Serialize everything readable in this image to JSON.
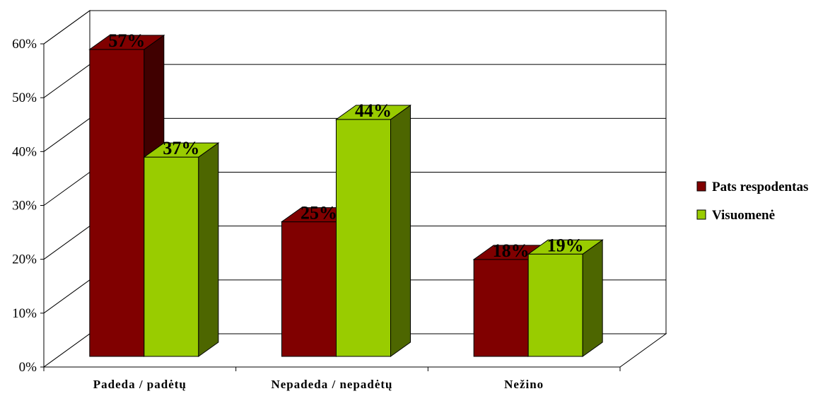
{
  "chart_data": {
    "type": "bar",
    "title": "",
    "xlabel": "",
    "ylabel": "",
    "categories": [
      "Padeda / padėtų",
      "Nepadeda / nepadėtų",
      "Nežino"
    ],
    "series": [
      {
        "name": "Pats respodentas",
        "values": [
          57,
          25,
          18
        ],
        "color": "#800000",
        "side_color": "#400000"
      },
      {
        "name": "Visuomenė",
        "values": [
          37,
          44,
          19
        ],
        "color": "#99cc00",
        "side_color": "#4d6600"
      }
    ],
    "value_format": "percent",
    "data_labels": [
      [
        "57%",
        "25%",
        "18%"
      ],
      [
        "37%",
        "44%",
        "19%"
      ]
    ],
    "y_ticks": [
      "0%",
      "10%",
      "20%",
      "30%",
      "40%",
      "50%",
      "60%"
    ],
    "ylim": [
      0,
      60
    ],
    "grid": true,
    "legend_position": "right",
    "three_d": true
  }
}
